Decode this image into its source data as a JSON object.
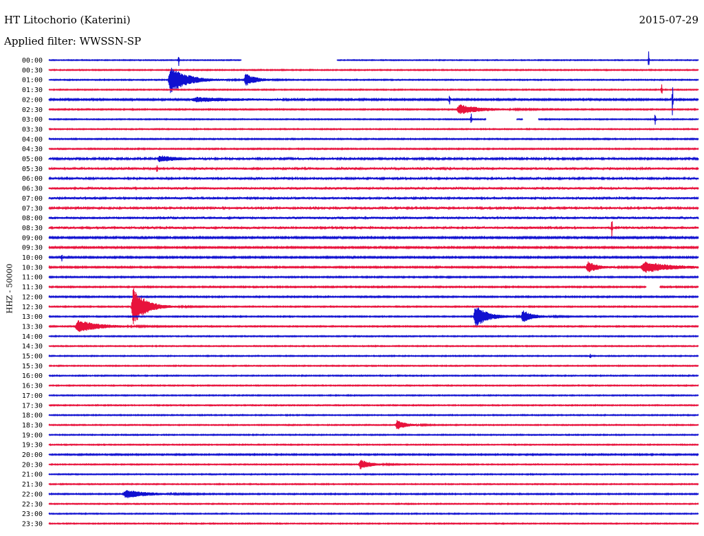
{
  "header": {
    "station": "HT Litochorio (Katerini)",
    "date": "2015-07-29",
    "filter": "Applied filter: WWSSN-SP"
  },
  "chart_data": {
    "type": "line",
    "title": "HT Litochorio (Katerini)",
    "subtitle": "Applied filter: WWSSN-SP",
    "ylabel": "HHZ - 50000",
    "xlabel": "",
    "row_labels": [
      "00:00",
      "00:30",
      "01:00",
      "01:30",
      "02:00",
      "02:30",
      "03:00",
      "03:30",
      "04:00",
      "04:30",
      "05:00",
      "05:30",
      "06:00",
      "06:30",
      "07:00",
      "07:30",
      "08:00",
      "08:30",
      "09:00",
      "09:30",
      "10:00",
      "10:30",
      "11:00",
      "11:30",
      "12:00",
      "12:30",
      "13:00",
      "13:30",
      "14:00",
      "14:30",
      "15:00",
      "15:30",
      "16:00",
      "16:30",
      "17:00",
      "17:30",
      "18:00",
      "18:30",
      "19:00",
      "19:30",
      "20:00",
      "20:30",
      "21:00",
      "21:30",
      "22:00",
      "22:30",
      "23:00",
      "23:30"
    ],
    "colors": [
      "#1010d0",
      "#e8123c"
    ],
    "x_range_minutes": [
      0,
      30
    ],
    "noise_level": [
      0.7,
      0.8,
      0.8,
      0.8,
      1.2,
      0.9,
      0.8,
      0.8,
      0.9,
      0.9,
      1.6,
      1.8,
      1.7,
      1.9,
      1.8,
      1.7,
      2.0,
      1.8,
      1.3,
      1.2,
      1.2,
      1.1,
      1.0,
      1.0,
      1.0,
      0.9,
      0.9,
      0.9,
      0.8,
      0.8,
      0.8,
      0.8,
      0.8,
      0.8,
      0.8,
      0.8,
      0.8,
      0.8,
      0.8,
      0.8,
      1.0,
      0.8,
      0.8,
      0.8,
      0.9,
      0.8,
      0.8,
      0.8
    ],
    "events": [
      {
        "row": 2,
        "start_min": 5.5,
        "amplitude": 20,
        "duration_min": 1.6
      },
      {
        "row": 2,
        "start_min": 9.0,
        "amplitude": 9,
        "duration_min": 1.0
      },
      {
        "row": 4,
        "start_min": 6.5,
        "amplitude": 3,
        "duration_min": 4.0
      },
      {
        "row": 5,
        "start_min": 18.8,
        "amplitude": 7,
        "duration_min": 2.0
      },
      {
        "row": 10,
        "start_min": 5.0,
        "amplitude": 4,
        "duration_min": 1.5
      },
      {
        "row": 21,
        "start_min": 24.8,
        "amplitude": 8,
        "duration_min": 1.0
      },
      {
        "row": 21,
        "start_min": 27.3,
        "amplitude": 8,
        "duration_min": 2.5
      },
      {
        "row": 25,
        "start_min": 3.8,
        "amplitude": 28,
        "duration_min": 1.2
      },
      {
        "row": 26,
        "start_min": 19.6,
        "amplitude": 16,
        "duration_min": 1.2
      },
      {
        "row": 26,
        "start_min": 21.8,
        "amplitude": 9,
        "duration_min": 1.0
      },
      {
        "row": 27,
        "start_min": 1.2,
        "amplitude": 9,
        "duration_min": 2.0
      },
      {
        "row": 37,
        "start_min": 16.0,
        "amplitude": 7,
        "duration_min": 0.9
      },
      {
        "row": 41,
        "start_min": 14.3,
        "amplitude": 7,
        "duration_min": 1.0
      },
      {
        "row": 44,
        "start_min": 3.4,
        "amplitude": 6,
        "duration_min": 2.0
      }
    ],
    "spikes": [
      {
        "row": 0,
        "min": 6.0,
        "amplitude": 9
      },
      {
        "row": 0,
        "min": 27.7,
        "amplitude": 14
      },
      {
        "row": 3,
        "min": 28.3,
        "amplitude": 10
      },
      {
        "row": 4,
        "min": 18.5,
        "amplitude": 8
      },
      {
        "row": 4,
        "min": 28.8,
        "amplitude": 28
      },
      {
        "row": 6,
        "min": 19.5,
        "amplitude": 10
      },
      {
        "row": 6,
        "min": 28.0,
        "amplitude": 12
      },
      {
        "row": 11,
        "min": 5.0,
        "amplitude": 6
      },
      {
        "row": 17,
        "min": 26.0,
        "amplitude": 14
      },
      {
        "row": 20,
        "min": 0.6,
        "amplitude": 6
      },
      {
        "row": 30,
        "min": 25.0,
        "amplitude": 4
      }
    ],
    "gaps": [
      {
        "row": 0,
        "start_min": 8.9,
        "end_min": 13.3
      },
      {
        "row": 6,
        "start_min": 20.2,
        "end_min": 21.6
      },
      {
        "row": 6,
        "start_min": 21.9,
        "end_min": 22.6
      },
      {
        "row": 23,
        "start_min": 27.6,
        "end_min": 28.2
      }
    ],
    "grid": false
  }
}
